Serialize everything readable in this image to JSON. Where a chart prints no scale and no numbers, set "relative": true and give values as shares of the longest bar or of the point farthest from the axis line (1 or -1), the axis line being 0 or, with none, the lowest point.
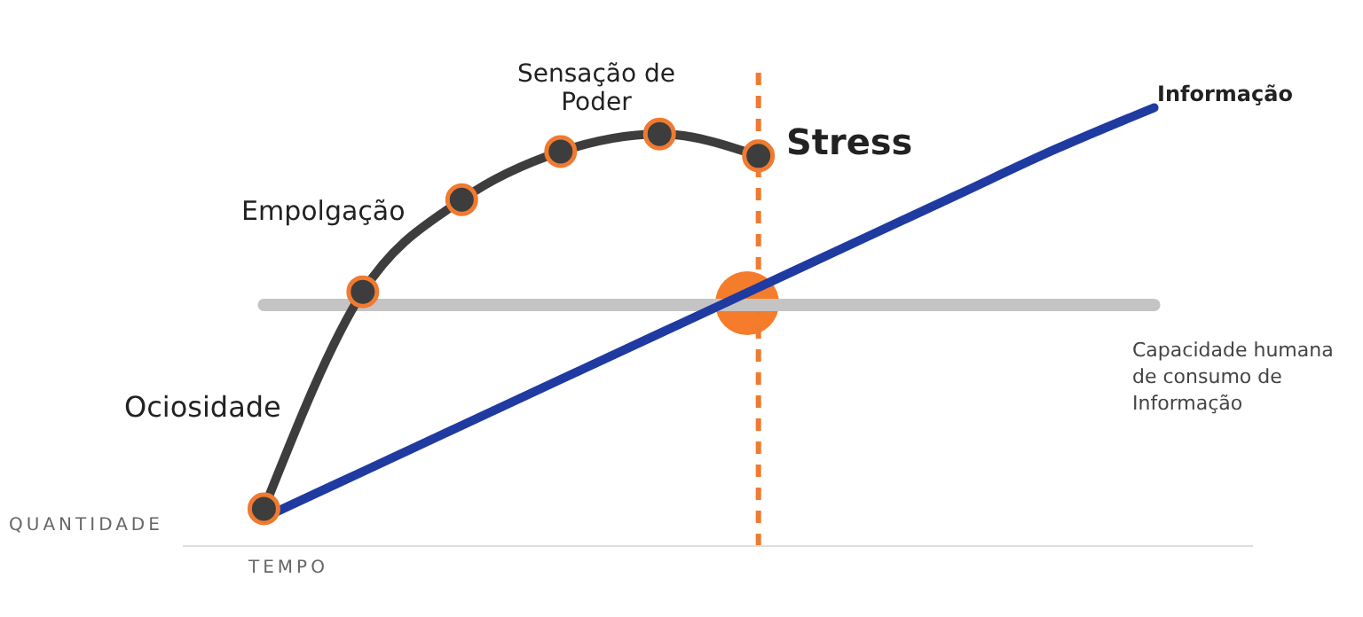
{
  "chart_data": {
    "type": "line",
    "relative": true,
    "xlabel": "TEMPO",
    "ylabel": "QUANTIDADE",
    "categories": [
      null,
      null,
      null,
      null,
      null,
      null,
      null,
      null,
      null,
      null,
      null
    ],
    "series": [
      {
        "color": "#3d3d3d",
        "marker": "circle",
        "values": [
          0.085,
          0.58,
          0.79,
          0.9,
          0.94,
          0.89,
          null,
          null,
          null,
          null,
          null
        ]
      },
      {
        "name": "Informação",
        "color": "#1f3aa0",
        "marker": "none",
        "values": [
          0.065,
          0.17,
          0.275,
          0.38,
          0.485,
          0.59,
          0.695,
          0.8,
          0.905,
          1.0,
          null
        ]
      },
      {
        "name": "Capacidade humana de consumo de Informação",
        "color": "#c4c4c4",
        "marker": "none",
        "values": [
          0.55,
          0.55,
          0.55,
          0.55,
          0.55,
          0.55,
          0.55,
          0.55,
          0.55,
          0.55,
          null
        ]
      }
    ],
    "annotations": [
      "Ociosidade",
      "Empolgação",
      "Sensação de Poder",
      "Stress"
    ]
  }
}
